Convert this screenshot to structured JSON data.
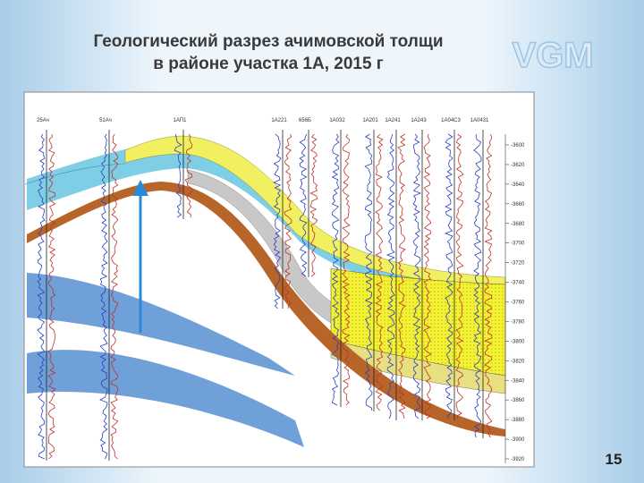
{
  "header": {
    "title_lines": [
      "Геологический разрез ачимовской толщи",
      "в районе участка 1А, 2015 г"
    ],
    "logo": "VGM"
  },
  "figure": {
    "wells": [
      "25Ач",
      "51Ач",
      "1АП1",
      "1А221",
      "656Б",
      "1А032",
      "1А201",
      "1А241",
      "1А243",
      "1А04С3",
      "1А0431"
    ],
    "depth_labels": [
      "-3600",
      "-3620",
      "-3640",
      "-3660",
      "-3680",
      "-3700",
      "-3720",
      "-3740",
      "-3760",
      "-3780",
      "-3800",
      "-3820",
      "-3840",
      "-3860",
      "-3880",
      "-3900",
      "-3920"
    ]
  },
  "footer": {
    "page_number": "15"
  }
}
